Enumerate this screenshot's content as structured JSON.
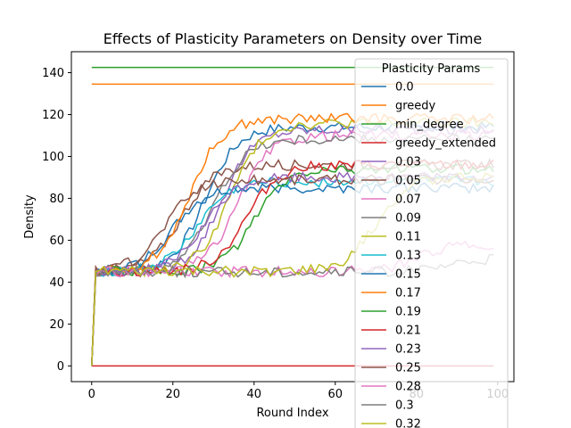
{
  "chart_data": {
    "type": "line",
    "title": "Effects of Plasticity Parameters on Density over Time",
    "xlabel": "Round Index",
    "ylabel": "Density",
    "xlim": [
      -5,
      104
    ],
    "ylim": [
      -7.5,
      150
    ],
    "xticks": [
      0,
      20,
      40,
      60,
      80,
      100
    ],
    "yticks": [
      0,
      20,
      40,
      60,
      80,
      100,
      120,
      140
    ],
    "grid": false,
    "legend_title": "Plasticity Params",
    "legend_position": "right",
    "n_rounds": 100,
    "series": [
      {
        "name": "0.0",
        "color": "#1f77b4",
        "kind": "ramp",
        "final": 114,
        "start": 18
      },
      {
        "name": "greedy",
        "color": "#ff7f0e",
        "kind": "flat",
        "value": 134.5
      },
      {
        "name": "min_degree",
        "color": "#2ca02c",
        "kind": "flat",
        "value": 142.5
      },
      {
        "name": "greedy_extended",
        "color": "#d62728",
        "kind": "flat",
        "value": 0
      },
      {
        "name": "0.03",
        "color": "#9467bd",
        "kind": "ramp",
        "final": 113,
        "start": 22
      },
      {
        "name": "0.05",
        "color": "#8c564b",
        "kind": "ramp",
        "final": 96,
        "start": 12
      },
      {
        "name": "0.07",
        "color": "#e377c2",
        "kind": "ramp",
        "final": 110,
        "start": 26
      },
      {
        "name": "0.09",
        "color": "#7f7f7f",
        "kind": "ramp",
        "final": 108,
        "start": 20
      },
      {
        "name": "0.11",
        "color": "#bcbd22",
        "kind": "ramp",
        "final": 116,
        "start": 24
      },
      {
        "name": "0.13",
        "color": "#17becf",
        "kind": "ramp",
        "final": 88,
        "start": 16
      },
      {
        "name": "0.15",
        "color": "#1f77b4",
        "kind": "ramp",
        "final": 85,
        "start": 10
      },
      {
        "name": "0.17",
        "color": "#ff7f0e",
        "kind": "ramp",
        "final": 118,
        "start": 14
      },
      {
        "name": "0.19",
        "color": "#2ca02c",
        "kind": "ramp",
        "final": 94,
        "start": 30
      },
      {
        "name": "0.21",
        "color": "#d62728",
        "kind": "ramp",
        "final": 96,
        "start": 28
      },
      {
        "name": "0.23",
        "color": "#9467bd",
        "kind": "ramp",
        "final": 90,
        "start": 18
      },
      {
        "name": "0.25",
        "color": "#8c564b",
        "kind": "ramp",
        "final": 89,
        "start": 8
      },
      {
        "name": "0.28",
        "color": "#e377c2",
        "kind": "ramp",
        "final": 58,
        "start": 70
      },
      {
        "name": "0.3",
        "color": "#7f7f7f",
        "kind": "ramp",
        "final": 52,
        "start": 80
      },
      {
        "name": "0.32",
        "color": "#bcbd22",
        "kind": "ramp",
        "final": 90,
        "start": 60
      }
    ]
  }
}
